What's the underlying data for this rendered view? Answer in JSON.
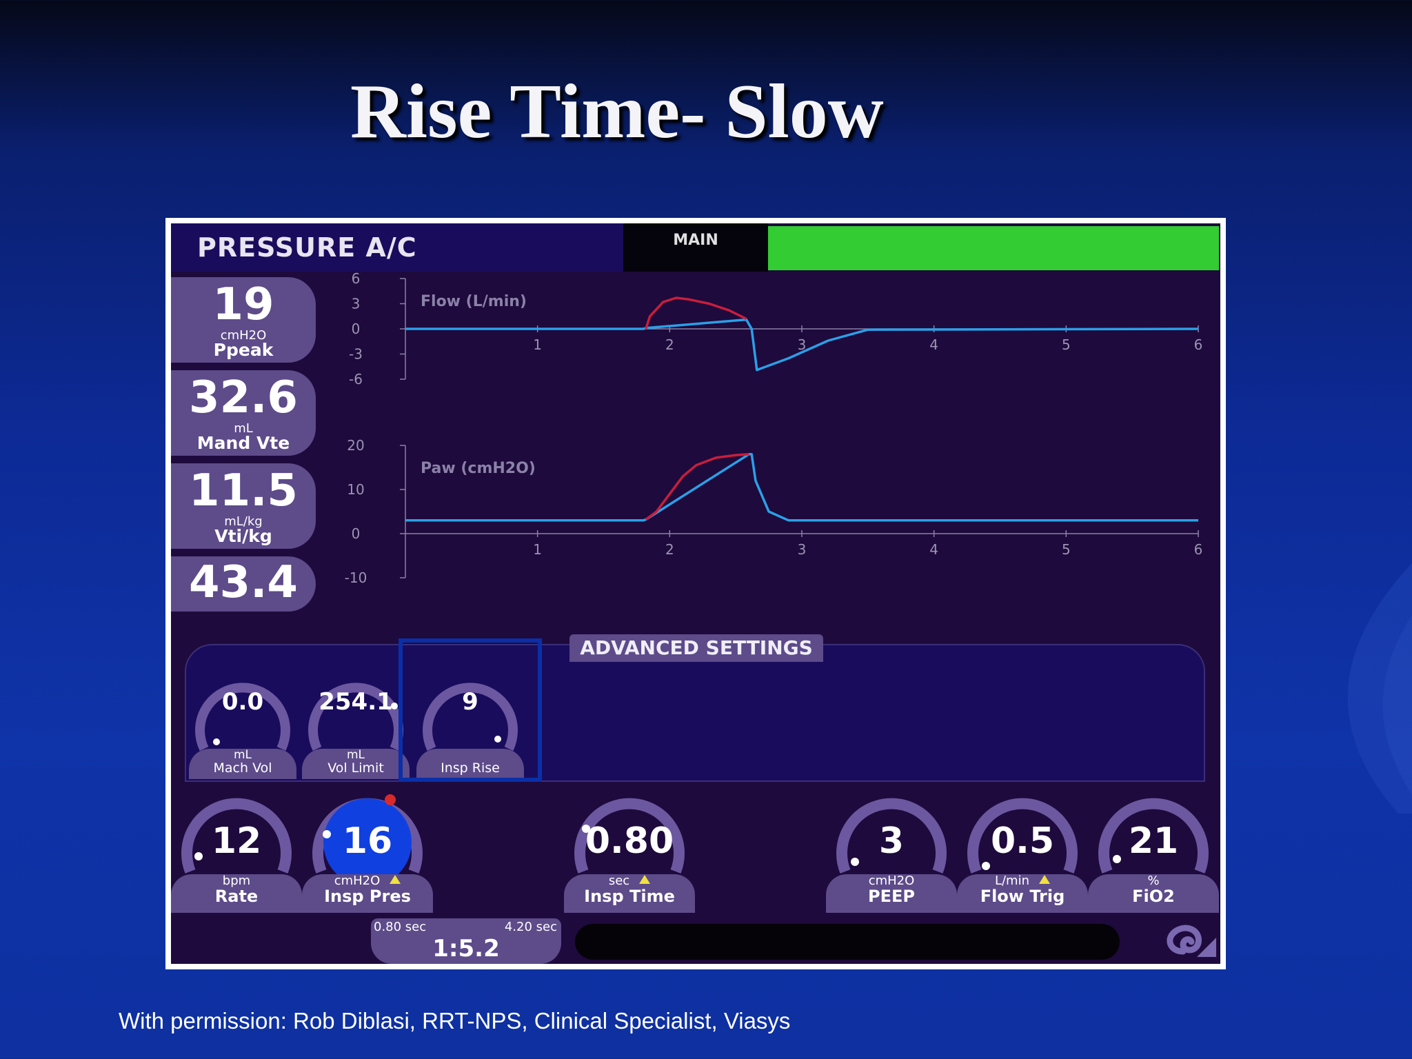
{
  "slide": {
    "title": "Rise Time- Slow",
    "credit": "With permission: Rob Diblasi, RRT-NPS, Clinical Specialist, Viasys"
  },
  "ventilator": {
    "mode": "PRESSURE A/C",
    "main_tab": "MAIN",
    "status_color": "#33cc33",
    "readouts": [
      {
        "value": "19",
        "unit": "cmH2O",
        "label": "Ppeak"
      },
      {
        "value": "32.6",
        "unit": "mL",
        "label": "Mand Vte"
      },
      {
        "value": "11.5",
        "unit": "mL/kg",
        "label": "Vti/kg"
      },
      {
        "value": "43.4",
        "unit": "",
        "label": ""
      }
    ],
    "advanced": {
      "title": "ADVANCED SETTINGS",
      "controls": [
        {
          "value": "0.0",
          "unit": "mL",
          "label": "Mach Vol"
        },
        {
          "value": "254.1",
          "unit": "mL",
          "label": "Vol Limit"
        },
        {
          "value": "9",
          "unit": "",
          "label": "Insp Rise"
        }
      ]
    },
    "controls": [
      {
        "value": "12",
        "unit": "bpm",
        "label": "Rate",
        "warn": false
      },
      {
        "value": "16",
        "unit": "cmH2O",
        "label": "Insp Pres",
        "warn": true,
        "active": true
      },
      {
        "value": "0.80",
        "unit": "sec",
        "label": "Insp Time",
        "warn": true
      },
      {
        "value": "3",
        "unit": "cmH2O",
        "label": "PEEP",
        "warn": false
      },
      {
        "value": "0.5",
        "unit": "L/min",
        "label": "Flow Trig",
        "warn": true
      },
      {
        "value": "21",
        "unit": "%",
        "label": "FiO2",
        "warn": false
      }
    ],
    "ie_ratio": {
      "insp": "0.80 sec",
      "exp": "4.20 sec",
      "ratio": "1:5.2"
    },
    "colors": {
      "waveform": "#2aa0e8",
      "inspiration": "#c81e3c",
      "active_dial": "#1040e0"
    }
  },
  "chart_data": [
    {
      "type": "line",
      "title": "Flow (L/min)",
      "xlim": [
        0,
        6
      ],
      "ylim": [
        -6,
        6
      ],
      "xticks": [
        "1",
        "2",
        "3",
        "4",
        "5",
        "6"
      ],
      "yticks": [
        "6",
        "3",
        "0",
        "-3",
        "-6"
      ],
      "series": [
        {
          "color": "#2aa0e8",
          "x": [
            0,
            1.8,
            1.82,
            2.58,
            2.62,
            2.66,
            2.9,
            3.2,
            3.5,
            6
          ],
          "y": [
            0,
            0,
            0.1,
            1.1,
            0,
            -4.9,
            -3.5,
            -1.4,
            -0.1,
            0
          ]
        },
        {
          "color": "#c81e3c",
          "x": [
            1.82,
            1.85,
            1.95,
            2.05,
            2.15,
            2.3,
            2.45,
            2.58
          ],
          "y": [
            0,
            1.5,
            3.2,
            3.7,
            3.5,
            3.0,
            2.2,
            1.2
          ]
        }
      ]
    },
    {
      "type": "line",
      "title": "Paw (cmH2O)",
      "xlim": [
        0,
        6
      ],
      "ylim": [
        -10,
        20
      ],
      "xticks": [
        "1",
        "2",
        "3",
        "4",
        "5",
        "6"
      ],
      "yticks": [
        "20",
        "10",
        "0",
        "-10"
      ],
      "series": [
        {
          "color": "#2aa0e8",
          "x": [
            0,
            1.8,
            1.82,
            2.6,
            2.62,
            2.65,
            2.75,
            2.9,
            6
          ],
          "y": [
            3,
            3,
            3.2,
            18,
            18,
            12,
            5,
            3,
            3
          ]
        },
        {
          "color": "#c81e3c",
          "x": [
            1.82,
            1.9,
            2.0,
            2.1,
            2.2,
            2.35,
            2.5,
            2.6
          ],
          "y": [
            3.2,
            5,
            9,
            13,
            15.5,
            17.2,
            17.8,
            18
          ]
        }
      ]
    }
  ]
}
